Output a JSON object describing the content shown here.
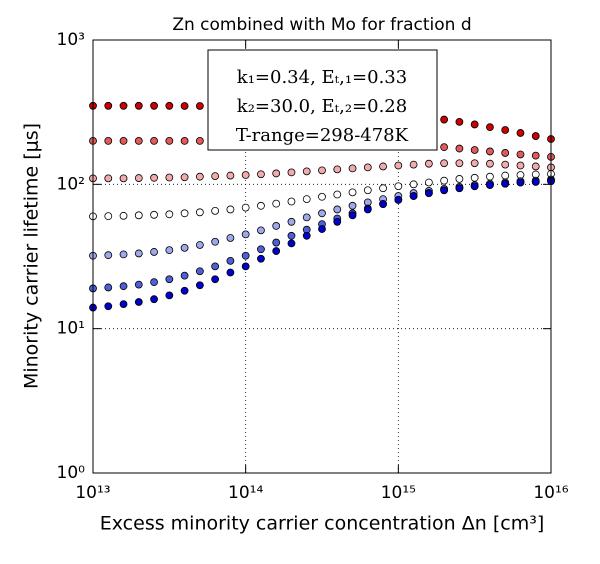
{
  "chart_data": {
    "type": "scatter",
    "title": "Zn combined with Mo for fraction d",
    "x_label": "Excess minority carrier concentration Δn [cm³]",
    "y_label": "Minority carrier lifetime [μs]",
    "annotation": [
      "k₁=0.34, Eₜ,₁=0.33",
      "k₂=30.0, Eₜ,₂=0.28",
      "T-range=298-478K"
    ],
    "x_log": true,
    "y_log": true,
    "grid": true,
    "xlim": [
      10000000000000.0,
      1e+16
    ],
    "ylim": [
      1,
      1000
    ],
    "xticks": [
      {
        "value": 10000000000000.0,
        "label": "10¹³"
      },
      {
        "value": 100000000000000.0,
        "label": "10¹⁴"
      },
      {
        "value": 1000000000000000.0,
        "label": "10¹⁵"
      },
      {
        "value": 1e+16,
        "label": "10¹⁶"
      }
    ],
    "yticks": [
      {
        "value": 1,
        "label": "10⁰"
      },
      {
        "value": 10,
        "label": "10¹"
      },
      {
        "value": 100,
        "label": "10²"
      },
      {
        "value": 1000,
        "label": "10³"
      }
    ],
    "x": [
      10000000000000.0,
      12590000000000.0,
      15850000000000.0,
      19950000000000.0,
      25120000000000.0,
      31620000000000.0,
      39810000000000.0,
      50120000000000.0,
      63100000000000.0,
      79430000000000.0,
      100000000000000.0,
      125900000000000.0,
      158500000000000.0,
      199500000000000.0,
      251200000000000.0,
      316200000000000.0,
      398100000000000.0,
      501200000000000.0,
      631000000000000.0,
      794300000000000.0,
      1000000000000000.0,
      1259000000000000.0,
      1585000000000000.0,
      1995000000000000.0,
      2512000000000000.0,
      3162000000000000.0,
      3981000000000000.0,
      5012000000000000.0,
      6310000000000000.0,
      7943000000000000.0,
      1e+16
    ],
    "series": [
      {
        "color": "#cc0000",
        "values": [
          350,
          350,
          350,
          350,
          350,
          350,
          349,
          349,
          348,
          348,
          347,
          346,
          345,
          344,
          342,
          339,
          335,
          330,
          324,
          317,
          309,
          300,
          291,
          281,
          271,
          260,
          249,
          238,
          227,
          216,
          206
        ]
      },
      {
        "color": "#e05a5a",
        "values": [
          200,
          200,
          200,
          200,
          200,
          200,
          200,
          200,
          200,
          200,
          200,
          200,
          200,
          200,
          199,
          198,
          197,
          196,
          195,
          193,
          191,
          188,
          185,
          181,
          177,
          173,
          169,
          165,
          161,
          158,
          155
        ]
      },
      {
        "color": "#f2abab",
        "values": [
          110,
          110,
          110,
          110.5,
          111,
          111.5,
          112,
          113,
          114,
          115,
          116,
          117.5,
          119,
          121,
          123,
          125,
          127,
          129,
          131,
          133,
          135,
          137,
          139,
          140,
          140,
          140,
          139,
          137,
          135,
          133,
          131
        ]
      },
      {
        "color": "#ffffff",
        "values": [
          60,
          60.2,
          60.5,
          61,
          61.5,
          62,
          63,
          64,
          65.5,
          67,
          69,
          71,
          73.5,
          76,
          79,
          82,
          85,
          88,
          91,
          94,
          97,
          100,
          103,
          106,
          109,
          111,
          113,
          115,
          116,
          117,
          118
        ]
      },
      {
        "color": "#a0a8ec",
        "values": [
          32,
          32.3,
          32.7,
          33.2,
          34,
          35,
          36.3,
          38,
          40,
          42.5,
          45,
          48,
          51.5,
          55,
          59,
          63,
          67,
          71,
          75,
          79,
          83,
          87,
          90,
          93,
          96,
          99,
          101,
          103,
          105,
          106,
          108
        ]
      },
      {
        "color": "#4f5fd8",
        "values": [
          19,
          19.3,
          19.7,
          20.2,
          21,
          22,
          23.3,
          25,
          27,
          29.5,
          32,
          35.5,
          39.5,
          44,
          48.5,
          53,
          58,
          63,
          68,
          73,
          78,
          83,
          87,
          91,
          94,
          97,
          99,
          101,
          103,
          104,
          106
        ]
      },
      {
        "color": "#0000cc",
        "values": [
          14,
          14.3,
          14.8,
          15.3,
          16,
          17,
          18.3,
          20,
          22,
          24.5,
          27,
          30.5,
          34.5,
          39,
          44,
          49,
          55,
          61,
          67,
          73,
          78,
          83,
          87,
          91,
          94,
          97,
          99,
          101,
          103,
          104,
          105
        ]
      }
    ]
  }
}
